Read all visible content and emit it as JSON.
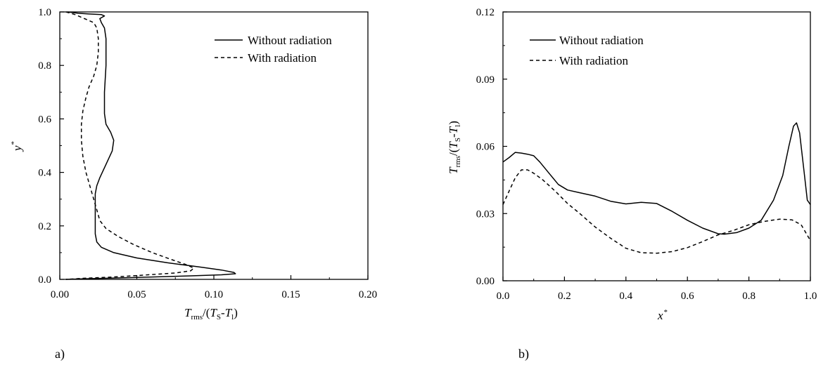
{
  "chart_data": [
    {
      "type": "line",
      "panel_label": "a)",
      "xlim": [
        0.0,
        0.2
      ],
      "ylim": [
        0.0,
        1.0
      ],
      "xticks": [
        "0.00",
        "0.05",
        "0.10",
        "0.15",
        "0.20"
      ],
      "yticks": [
        "0.0",
        "0.2",
        "0.4",
        "0.6",
        "0.8",
        "1.0"
      ],
      "xlabel": {
        "T": "T",
        "rms": "rms",
        "rest1": "/(",
        "T2": "T",
        "S": "S",
        "rest2": "-",
        "T3": "T",
        "l": "l",
        "rest3": ")"
      },
      "ylabel": {
        "y": "y",
        "star": "*"
      },
      "legend": [
        "Without radiation",
        "With radiation"
      ],
      "series": [
        {
          "name": "Without radiation",
          "style": "solid",
          "points": [
            [
              0.005,
              1.0
            ],
            [
              0.012,
              0.995
            ],
            [
              0.02,
              0.992
            ],
            [
              0.027,
              0.99
            ],
            [
              0.029,
              0.985
            ],
            [
              0.026,
              0.975
            ],
            [
              0.027,
              0.96
            ],
            [
              0.029,
              0.94
            ],
            [
              0.03,
              0.9
            ],
            [
              0.03,
              0.8
            ],
            [
              0.029,
              0.7
            ],
            [
              0.029,
              0.62
            ],
            [
              0.03,
              0.58
            ],
            [
              0.033,
              0.55
            ],
            [
              0.035,
              0.52
            ],
            [
              0.034,
              0.48
            ],
            [
              0.03,
              0.43
            ],
            [
              0.026,
              0.38
            ],
            [
              0.024,
              0.35
            ],
            [
              0.023,
              0.32
            ],
            [
              0.023,
              0.28
            ],
            [
              0.023,
              0.22
            ],
            [
              0.023,
              0.17
            ],
            [
              0.024,
              0.14
            ],
            [
              0.027,
              0.12
            ],
            [
              0.035,
              0.1
            ],
            [
              0.05,
              0.08
            ],
            [
              0.07,
              0.062
            ],
            [
              0.09,
              0.047
            ],
            [
              0.105,
              0.035
            ],
            [
              0.113,
              0.026
            ],
            [
              0.114,
              0.021
            ],
            [
              0.105,
              0.017
            ],
            [
              0.085,
              0.013
            ],
            [
              0.06,
              0.009
            ],
            [
              0.035,
              0.005
            ],
            [
              0.015,
              0.002
            ],
            [
              0.004,
              0.0
            ]
          ]
        },
        {
          "name": "With radiation",
          "style": "dashed",
          "points": [
            [
              0.004,
              1.0
            ],
            [
              0.01,
              0.99
            ],
            [
              0.016,
              0.975
            ],
            [
              0.022,
              0.96
            ],
            [
              0.024,
              0.94
            ],
            [
              0.025,
              0.9
            ],
            [
              0.025,
              0.85
            ],
            [
              0.024,
              0.8
            ],
            [
              0.022,
              0.76
            ],
            [
              0.019,
              0.72
            ],
            [
              0.017,
              0.68
            ],
            [
              0.015,
              0.63
            ],
            [
              0.014,
              0.58
            ],
            [
              0.014,
              0.52
            ],
            [
              0.015,
              0.46
            ],
            [
              0.017,
              0.4
            ],
            [
              0.02,
              0.34
            ],
            [
              0.022,
              0.3
            ],
            [
              0.024,
              0.26
            ],
            [
              0.026,
              0.22
            ],
            [
              0.03,
              0.19
            ],
            [
              0.038,
              0.16
            ],
            [
              0.048,
              0.13
            ],
            [
              0.06,
              0.1
            ],
            [
              0.072,
              0.075
            ],
            [
              0.082,
              0.055
            ],
            [
              0.087,
              0.042
            ],
            [
              0.085,
              0.032
            ],
            [
              0.075,
              0.024
            ],
            [
              0.055,
              0.016
            ],
            [
              0.035,
              0.009
            ],
            [
              0.015,
              0.004
            ],
            [
              0.004,
              0.0
            ]
          ]
        }
      ]
    },
    {
      "type": "line",
      "panel_label": "b)",
      "xlim": [
        0.0,
        1.0
      ],
      "ylim": [
        0.0,
        0.12
      ],
      "xticks": [
        "0.0",
        "0.2",
        "0.4",
        "0.6",
        "0.8",
        "1.0"
      ],
      "yticks": [
        "0.00",
        "0.03",
        "0.06",
        "0.09",
        "0.12"
      ],
      "xlabel": {
        "x": "x",
        "star": "*"
      },
      "ylabel": {
        "T": "T",
        "rms": "rms",
        "rest1": "/(",
        "T2": "T",
        "S": "S",
        "rest2": "-",
        "T3": "T",
        "l": "l",
        "rest3": ")"
      },
      "legend": [
        "Without radiation",
        "With radiation"
      ],
      "series": [
        {
          "name": "Without radiation",
          "style": "solid",
          "points": [
            [
              0.0,
              0.053
            ],
            [
              0.02,
              0.055
            ],
            [
              0.04,
              0.0573
            ],
            [
              0.06,
              0.057
            ],
            [
              0.08,
              0.0565
            ],
            [
              0.1,
              0.0558
            ],
            [
              0.12,
              0.053
            ],
            [
              0.15,
              0.048
            ],
            [
              0.18,
              0.043
            ],
            [
              0.21,
              0.0405
            ],
            [
              0.25,
              0.0393
            ],
            [
              0.3,
              0.0378
            ],
            [
              0.35,
              0.0355
            ],
            [
              0.4,
              0.0343
            ],
            [
              0.45,
              0.035
            ],
            [
              0.5,
              0.0345
            ],
            [
              0.55,
              0.031
            ],
            [
              0.6,
              0.027
            ],
            [
              0.65,
              0.0235
            ],
            [
              0.7,
              0.021
            ],
            [
              0.72,
              0.0208
            ],
            [
              0.76,
              0.0215
            ],
            [
              0.8,
              0.0235
            ],
            [
              0.84,
              0.027
            ],
            [
              0.88,
              0.036
            ],
            [
              0.91,
              0.047
            ],
            [
              0.93,
              0.06
            ],
            [
              0.945,
              0.069
            ],
            [
              0.955,
              0.0705
            ],
            [
              0.965,
              0.066
            ],
            [
              0.98,
              0.048
            ],
            [
              0.99,
              0.036
            ],
            [
              1.0,
              0.034
            ]
          ]
        },
        {
          "name": "With radiation",
          "style": "dashed",
          "points": [
            [
              0.0,
              0.034
            ],
            [
              0.02,
              0.04
            ],
            [
              0.04,
              0.046
            ],
            [
              0.06,
              0.0495
            ],
            [
              0.08,
              0.0495
            ],
            [
              0.1,
              0.048
            ],
            [
              0.13,
              0.045
            ],
            [
              0.17,
              0.04
            ],
            [
              0.21,
              0.0345
            ],
            [
              0.25,
              0.03
            ],
            [
              0.3,
              0.024
            ],
            [
              0.35,
              0.019
            ],
            [
              0.4,
              0.0145
            ],
            [
              0.45,
              0.0125
            ],
            [
              0.5,
              0.0123
            ],
            [
              0.55,
              0.013
            ],
            [
              0.6,
              0.0148
            ],
            [
              0.65,
              0.0175
            ],
            [
              0.7,
              0.0205
            ],
            [
              0.75,
              0.0225
            ],
            [
              0.8,
              0.025
            ],
            [
              0.85,
              0.0265
            ],
            [
              0.9,
              0.0275
            ],
            [
              0.94,
              0.0272
            ],
            [
              0.97,
              0.025
            ],
            [
              1.0,
              0.018
            ]
          ]
        }
      ]
    }
  ]
}
